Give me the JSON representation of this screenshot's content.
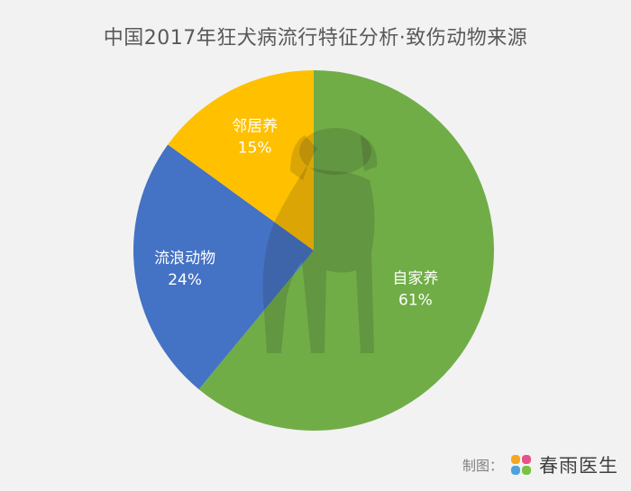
{
  "chart_data": {
    "type": "pie",
    "title": "中国2017年狂犬病流行特征分析·致伤动物来源",
    "slices": [
      {
        "label": "自家养",
        "value": 61,
        "display": "61%",
        "color": "#70ad47"
      },
      {
        "label": "流浪动物",
        "value": 24,
        "display": "24%",
        "color": "#4472c4"
      },
      {
        "label": "邻居养",
        "value": 15,
        "display": "15%",
        "color": "#ffc000"
      }
    ],
    "start": "12 o'clock",
    "direction": "clockwise"
  },
  "credit": {
    "label": "制图：",
    "brand": "春雨医生",
    "logo_icon": "four-petal-flower-logo",
    "logo_colors": [
      "#f5a623",
      "#e94f8a",
      "#4aa3df",
      "#7ac143"
    ]
  }
}
